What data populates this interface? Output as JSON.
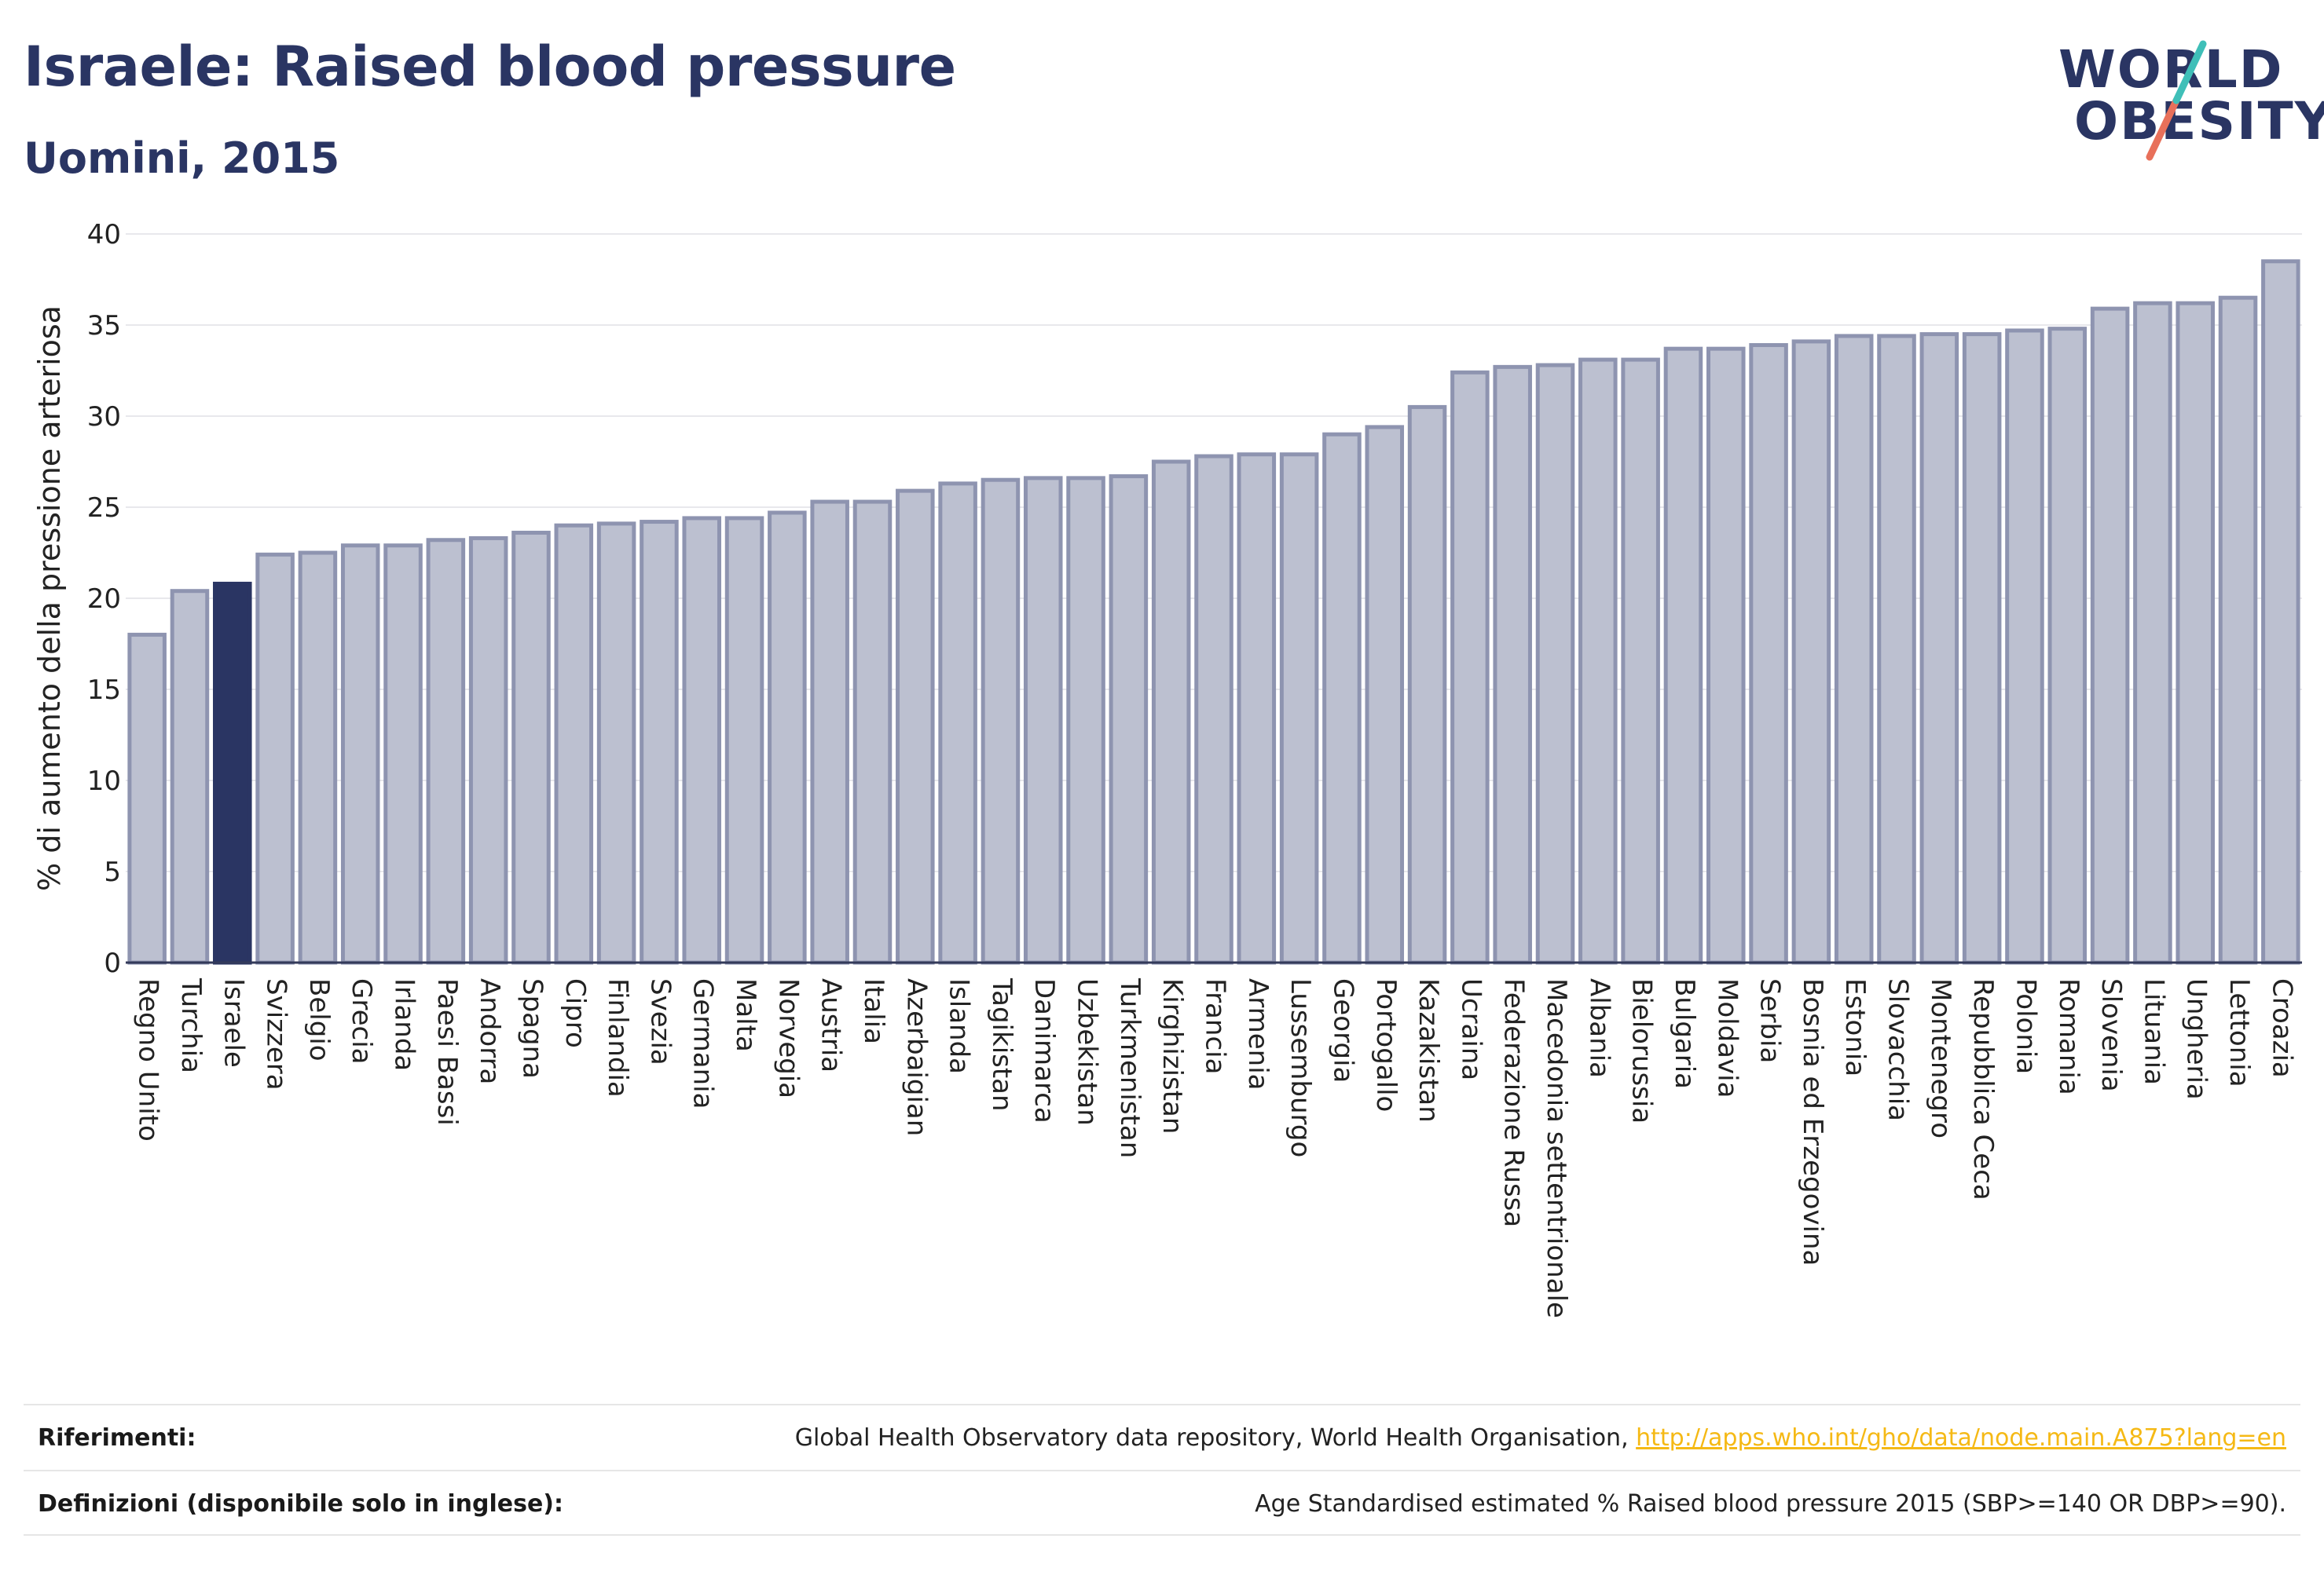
{
  "title": "Israele: Raised blood pressure",
  "subtitle": "Uomini, 2015",
  "logo": {
    "line1": "WORLD",
    "line2": "OBESITY",
    "accent_teal": "#3fbfb8",
    "accent_coral": "#e8705a"
  },
  "colors": {
    "bar": "#bcc0d0",
    "bar_stroke": "#8e94b0",
    "highlight": "#2a3563",
    "grid": "#e8e8ec",
    "text": "#222222"
  },
  "chart_data": {
    "type": "bar",
    "ylabel": "% di aumento della pressione arteriosa",
    "ylim": [
      0,
      40
    ],
    "yticks": [
      0,
      5,
      10,
      15,
      20,
      25,
      30,
      35,
      40
    ],
    "grid": true,
    "highlight_category": "Israele",
    "categories": [
      "Regno Unito",
      "Turchia",
      "Israele",
      "Svizzera",
      "Belgio",
      "Grecia",
      "Irlanda",
      "Paesi Bassi",
      "Andorra",
      "Spagna",
      "Cipro",
      "Finlandia",
      "Svezia",
      "Germania",
      "Malta",
      "Norvegia",
      "Austria",
      "Italia",
      "Azerbaigian",
      "Islanda",
      "Tagikistan",
      "Danimarca",
      "Uzbekistan",
      "Turkmenistan",
      "Kirghizistan",
      "Francia",
      "Armenia",
      "Lussemburgo",
      "Georgia",
      "Portogallo",
      "Kazakistan",
      "Ucraina",
      "Federazione Russa",
      "Macedonia settentrionale",
      "Albania",
      "Bielorussia",
      "Bulgaria",
      "Moldavia",
      "Serbia",
      "Bosnia ed Erzegovina",
      "Estonia",
      "Slovacchia",
      "Montenegro",
      "Repubblica Ceca",
      "Polonia",
      "Romania",
      "Slovenia",
      "Lituania",
      "Ungheria",
      "Lettonia",
      "Croazia"
    ],
    "values": [
      18.0,
      20.4,
      20.8,
      22.4,
      22.5,
      22.9,
      22.9,
      23.2,
      23.3,
      23.6,
      24.0,
      24.1,
      24.2,
      24.4,
      24.4,
      24.7,
      25.3,
      25.3,
      25.9,
      26.3,
      26.5,
      26.6,
      26.6,
      26.7,
      27.5,
      27.8,
      27.9,
      27.9,
      29.0,
      29.4,
      30.5,
      32.4,
      32.7,
      32.8,
      33.1,
      33.1,
      33.7,
      33.7,
      33.9,
      34.1,
      34.4,
      34.4,
      34.5,
      34.5,
      34.7,
      34.8,
      35.9,
      36.2,
      36.2,
      36.5,
      38.5
    ]
  },
  "footer": {
    "references_label": "Riferimenti:",
    "references_text": "Global Health Observatory data repository, World Health Organisation, ",
    "references_link": "http://apps.who.int/gho/data/node.main.A875?lang=en",
    "definitions_label": "Definizioni (disponibile solo in inglese):",
    "definitions_text": "Age Standardised estimated % Raised blood pressure 2015 (SBP>=140 OR DBP>=90)."
  }
}
